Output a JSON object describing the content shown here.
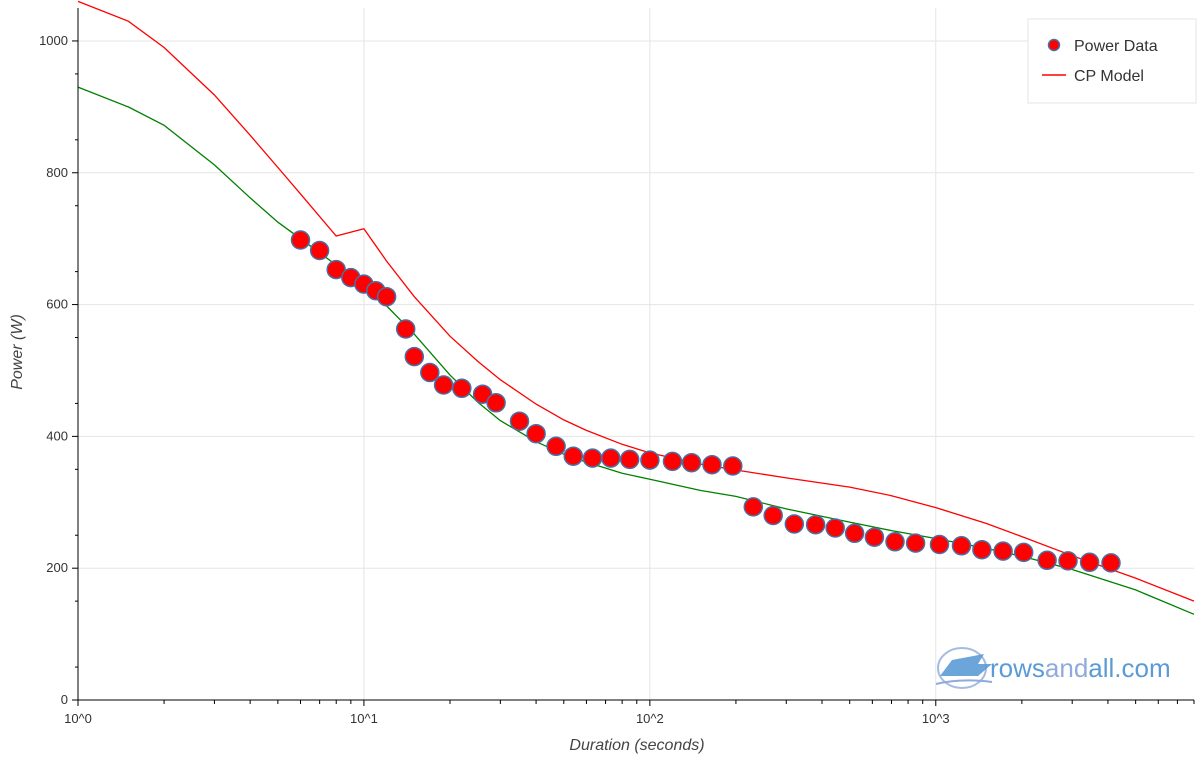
{
  "chart_data": {
    "type": "scatter",
    "xscale": "log",
    "xlim": [
      1,
      8000
    ],
    "ylim": [
      0,
      1050
    ],
    "xlabel": "Duration (seconds)",
    "ylabel": "Power (W)",
    "grid": true,
    "legend_position": "top-right",
    "x_ticks": [
      {
        "value": 1,
        "label": "10^0"
      },
      {
        "value": 10,
        "label": "10^1"
      },
      {
        "value": 100,
        "label": "10^2"
      },
      {
        "value": 1000,
        "label": "10^3"
      }
    ],
    "y_ticks": [
      0,
      200,
      400,
      600,
      800,
      1000
    ],
    "legend": [
      {
        "name": "Power Data",
        "kind": "marker",
        "color": "#ff0000",
        "stroke": "#4a6fa5"
      },
      {
        "name": "CP Model",
        "kind": "line",
        "color": "#ff0000"
      }
    ],
    "series": [
      {
        "name": "Power Data",
        "kind": "scatter",
        "color": "#ff0000",
        "stroke": "#4a6fa5",
        "x": [
          6,
          7,
          8,
          9,
          10,
          11,
          12,
          14,
          15,
          17,
          19,
          22,
          26,
          29,
          35,
          40,
          47,
          54,
          63,
          73,
          85,
          100,
          120,
          140,
          165,
          195,
          230,
          270,
          320,
          380,
          445,
          520,
          610,
          720,
          850,
          1030,
          1230,
          1450,
          1720,
          2030,
          2450,
          2900,
          3450,
          4100
        ],
        "y": [
          698,
          682,
          653,
          641,
          631,
          621,
          612,
          563,
          521,
          497,
          478,
          473,
          464,
          451,
          423,
          404,
          385,
          370,
          367,
          367,
          365,
          364,
          362,
          360,
          357,
          355,
          293,
          280,
          267,
          266,
          261,
          253,
          247,
          240,
          238,
          236,
          234,
          228,
          226,
          224,
          212,
          211,
          209,
          208
        ]
      },
      {
        "name": "CP Model",
        "kind": "line",
        "color": "#ff0000",
        "x": [
          1,
          1.5,
          2,
          3,
          4,
          5,
          6,
          8,
          10,
          12,
          15,
          20,
          25,
          30,
          40,
          50,
          60,
          80,
          100,
          150,
          200,
          300,
          500,
          700,
          1000,
          1500,
          2000,
          3000,
          5000,
          8000
        ],
        "y": [
          1060,
          1030,
          990,
          918,
          857,
          808,
          768,
          704,
          715,
          666,
          612,
          552,
          514,
          486,
          449,
          425,
          409,
          388,
          375,
          358,
          349,
          337,
          323,
          310,
          292,
          268,
          248,
          219,
          185,
          150
        ]
      },
      {
        "color": "#008000",
        "kind": "line",
        "x": [
          1,
          1.5,
          2,
          3,
          4,
          5,
          6,
          8,
          10,
          12,
          15,
          20,
          25,
          30,
          40,
          50,
          60,
          80,
          100,
          150,
          200,
          300,
          500,
          700,
          1000,
          1500,
          2000,
          3000,
          5000,
          8000
        ],
        "y": [
          930,
          900,
          872,
          812,
          762,
          725,
          700,
          660,
          627,
          598,
          555,
          493,
          452,
          424,
          392,
          373,
          361,
          344,
          335,
          318,
          309,
          290,
          270,
          257,
          245,
          230,
          218,
          198,
          167,
          130
        ]
      }
    ]
  },
  "watermark": {
    "text_rows": "rows",
    "text_and": "and",
    "text_all": "all.com",
    "color_primary": "#5b9bd5",
    "color_secondary": "#8faadc",
    "icon": "rowing-boat-icon"
  }
}
